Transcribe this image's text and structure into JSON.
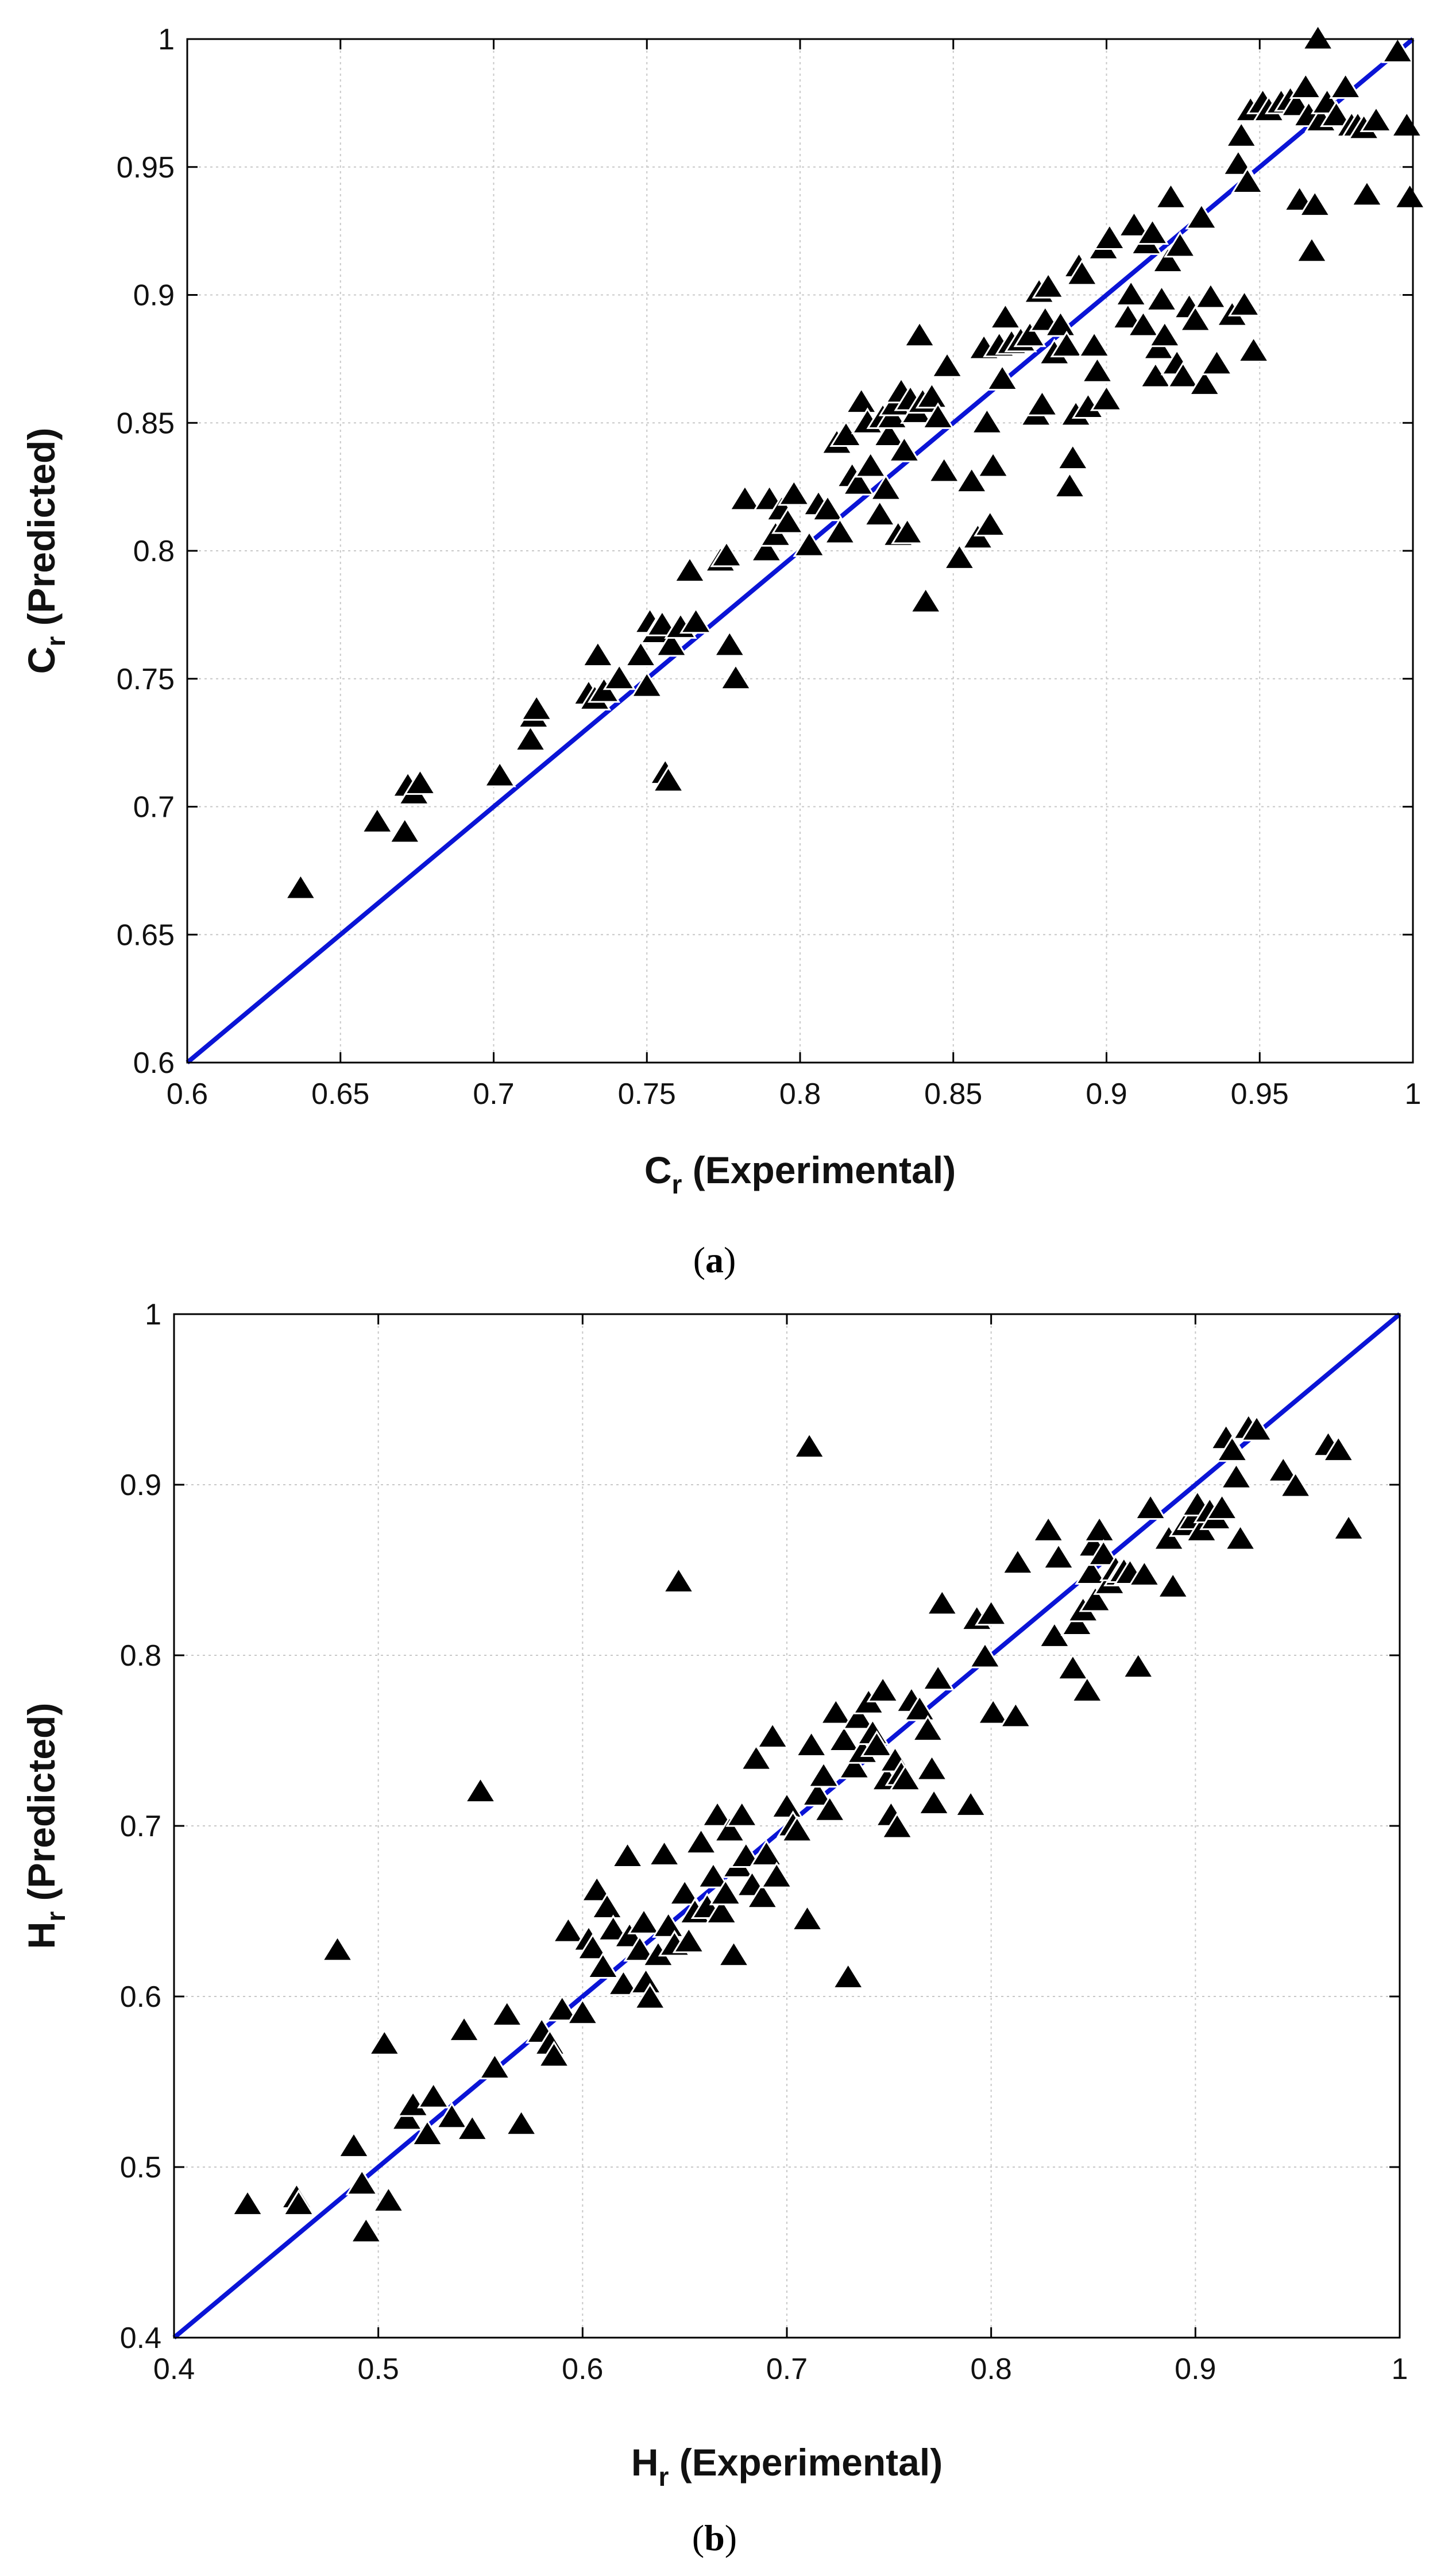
{
  "chart_data": [
    {
      "id": "a",
      "type": "scatter",
      "caption_letter": "a",
      "title": "",
      "xlabel_main": "C",
      "xlabel_sub": "r",
      "xlabel_rest": " (Experimental)",
      "ylabel_main": "C",
      "ylabel_sub": "r",
      "ylabel_rest": " (Predicted)",
      "xlim": [
        0.6,
        1.0
      ],
      "ylim": [
        0.6,
        1.0
      ],
      "xticks": [
        0.6,
        0.65,
        0.7,
        0.75,
        0.8,
        0.85,
        0.9,
        0.95,
        1
      ],
      "yticks": [
        0.6,
        0.65,
        0.7,
        0.75,
        0.8,
        0.85,
        0.9,
        0.95,
        1
      ],
      "xtick_labels": [
        "0.6",
        "0.65",
        "0.7",
        "0.75",
        "0.8",
        "0.85",
        "0.9",
        "0.95",
        "1"
      ],
      "ytick_labels": [
        "0.6",
        "0.65",
        "0.7",
        "0.75",
        "0.8",
        "0.85",
        "0.9",
        "0.95",
        "1"
      ],
      "grid": true,
      "marker": "triangle",
      "marker_color": "#000000",
      "reference_line": {
        "from": [
          0.6,
          0.6
        ],
        "to": [
          1.0,
          1.0
        ],
        "color": "#0a14d6"
      },
      "points": [
        [
          0.637,
          0.668
        ],
        [
          0.662,
          0.694
        ],
        [
          0.671,
          0.69
        ],
        [
          0.672,
          0.708
        ],
        [
          0.674,
          0.705
        ],
        [
          0.676,
          0.709
        ],
        [
          0.702,
          0.712
        ],
        [
          0.712,
          0.726
        ],
        [
          0.713,
          0.735
        ],
        [
          0.714,
          0.738
        ],
        [
          0.731,
          0.744
        ],
        [
          0.733,
          0.742
        ],
        [
          0.734,
          0.759
        ],
        [
          0.736,
          0.745
        ],
        [
          0.741,
          0.75
        ],
        [
          0.748,
          0.759
        ],
        [
          0.75,
          0.747
        ],
        [
          0.751,
          0.772
        ],
        [
          0.753,
          0.768
        ],
        [
          0.755,
          0.771
        ],
        [
          0.756,
          0.713
        ],
        [
          0.757,
          0.71
        ],
        [
          0.758,
          0.763
        ],
        [
          0.761,
          0.77
        ],
        [
          0.764,
          0.792
        ],
        [
          0.766,
          0.772
        ],
        [
          0.774,
          0.796
        ],
        [
          0.776,
          0.798
        ],
        [
          0.777,
          0.763
        ],
        [
          0.779,
          0.75
        ],
        [
          0.782,
          0.82
        ],
        [
          0.789,
          0.8
        ],
        [
          0.79,
          0.82
        ],
        [
          0.792,
          0.806
        ],
        [
          0.794,
          0.816
        ],
        [
          0.796,
          0.811
        ],
        [
          0.798,
          0.822
        ],
        [
          0.803,
          0.802
        ],
        [
          0.806,
          0.818
        ],
        [
          0.809,
          0.816
        ],
        [
          0.812,
          0.842
        ],
        [
          0.813,
          0.807
        ],
        [
          0.815,
          0.845
        ],
        [
          0.817,
          0.829
        ],
        [
          0.819,
          0.826
        ],
        [
          0.82,
          0.858
        ],
        [
          0.822,
          0.85
        ],
        [
          0.823,
          0.833
        ],
        [
          0.826,
          0.814
        ],
        [
          0.827,
          0.852
        ],
        [
          0.828,
          0.824
        ],
        [
          0.829,
          0.845
        ],
        [
          0.83,
          0.852
        ],
        [
          0.831,
          0.857
        ],
        [
          0.832,
          0.806
        ],
        [
          0.833,
          0.862
        ],
        [
          0.834,
          0.839
        ],
        [
          0.835,
          0.807
        ],
        [
          0.836,
          0.859
        ],
        [
          0.838,
          0.854
        ],
        [
          0.839,
          0.884
        ],
        [
          0.84,
          0.858
        ],
        [
          0.841,
          0.78
        ],
        [
          0.843,
          0.86
        ],
        [
          0.845,
          0.852
        ],
        [
          0.847,
          0.831
        ],
        [
          0.848,
          0.872
        ],
        [
          0.852,
          0.797
        ],
        [
          0.856,
          0.827
        ],
        [
          0.858,
          0.805
        ],
        [
          0.86,
          0.879
        ],
        [
          0.861,
          0.85
        ],
        [
          0.862,
          0.81
        ],
        [
          0.863,
          0.833
        ],
        [
          0.865,
          0.88
        ],
        [
          0.866,
          0.867
        ],
        [
          0.867,
          0.891
        ],
        [
          0.869,
          0.881
        ],
        [
          0.872,
          0.882
        ],
        [
          0.875,
          0.884
        ],
        [
          0.877,
          0.853
        ],
        [
          0.878,
          0.901
        ],
        [
          0.879,
          0.857
        ],
        [
          0.88,
          0.89
        ],
        [
          0.881,
          0.903
        ],
        [
          0.883,
          0.877
        ],
        [
          0.885,
          0.888
        ],
        [
          0.887,
          0.88
        ],
        [
          0.888,
          0.825
        ],
        [
          0.889,
          0.836
        ],
        [
          0.89,
          0.853
        ],
        [
          0.891,
          0.911
        ],
        [
          0.892,
          0.908
        ],
        [
          0.894,
          0.856
        ],
        [
          0.896,
          0.88
        ],
        [
          0.897,
          0.87
        ],
        [
          0.899,
          0.918
        ],
        [
          0.9,
          0.859
        ],
        [
          0.901,
          0.922
        ],
        [
          0.907,
          0.891
        ],
        [
          0.908,
          0.9
        ],
        [
          0.909,
          0.927
        ],
        [
          0.912,
          0.888
        ],
        [
          0.913,
          0.92
        ],
        [
          0.915,
          0.924
        ],
        [
          0.916,
          0.868
        ],
        [
          0.917,
          0.879
        ],
        [
          0.918,
          0.898
        ],
        [
          0.919,
          0.884
        ],
        [
          0.92,
          0.913
        ],
        [
          0.921,
          0.938
        ],
        [
          0.923,
          0.873
        ],
        [
          0.924,
          0.919
        ],
        [
          0.925,
          0.868
        ],
        [
          0.927,
          0.895
        ],
        [
          0.929,
          0.89
        ],
        [
          0.931,
          0.93
        ],
        [
          0.932,
          0.865
        ],
        [
          0.934,
          0.899
        ],
        [
          0.936,
          0.873
        ],
        [
          0.941,
          0.892
        ],
        [
          0.943,
          0.951
        ],
        [
          0.944,
          0.962
        ],
        [
          0.945,
          0.896
        ],
        [
          0.946,
          0.944
        ],
        [
          0.947,
          0.972
        ],
        [
          0.948,
          0.878
        ],
        [
          0.951,
          0.975
        ],
        [
          0.953,
          0.972
        ],
        [
          0.957,
          0.975
        ],
        [
          0.96,
          0.976
        ],
        [
          0.962,
          0.974
        ],
        [
          0.963,
          0.937
        ],
        [
          0.965,
          0.981
        ],
        [
          0.966,
          0.97
        ],
        [
          0.967,
          0.917
        ],
        [
          0.968,
          0.935
        ],
        [
          0.969,
          1.0
        ],
        [
          0.97,
          0.968
        ],
        [
          0.972,
          0.975
        ],
        [
          0.975,
          0.97
        ],
        [
          0.978,
          0.981
        ],
        [
          0.98,
          0.966
        ],
        [
          0.982,
          0.966
        ],
        [
          0.984,
          0.965
        ],
        [
          0.985,
          0.939
        ],
        [
          0.988,
          0.968
        ],
        [
          0.995,
          0.995
        ],
        [
          0.998,
          0.966
        ],
        [
          0.999,
          0.938
        ]
      ]
    },
    {
      "id": "b",
      "type": "scatter",
      "caption_letter": "b",
      "title": "",
      "xlabel_main": "H",
      "xlabel_sub": "r",
      "xlabel_rest": " (Experimental)",
      "ylabel_main": "H",
      "ylabel_sub": "r",
      "ylabel_rest": " (Predicted)",
      "xlim": [
        0.4,
        1.0
      ],
      "ylim": [
        0.4,
        1.0
      ],
      "xticks": [
        0.4,
        0.5,
        0.6,
        0.7,
        0.8,
        0.9,
        1
      ],
      "yticks": [
        0.4,
        0.5,
        0.6,
        0.7,
        0.8,
        0.9,
        1
      ],
      "xtick_labels": [
        "0.4",
        "0.5",
        "0.6",
        "0.7",
        "0.8",
        "0.9",
        "1"
      ],
      "ytick_labels": [
        "0.4",
        "0.5",
        "0.6",
        "0.7",
        "0.8",
        "0.9",
        "1"
      ],
      "grid": true,
      "marker": "triangle",
      "marker_color": "#000000",
      "reference_line": {
        "from": [
          0.4,
          0.4
        ],
        "to": [
          1.0,
          1.0
        ],
        "color": "#0a14d6"
      },
      "points": [
        [
          0.436,
          0.478
        ],
        [
          0.46,
          0.482
        ],
        [
          0.461,
          0.478
        ],
        [
          0.48,
          0.627
        ],
        [
          0.488,
          0.512
        ],
        [
          0.492,
          0.49
        ],
        [
          0.494,
          0.462
        ],
        [
          0.503,
          0.572
        ],
        [
          0.505,
          0.48
        ],
        [
          0.514,
          0.528
        ],
        [
          0.517,
          0.536
        ],
        [
          0.524,
          0.519
        ],
        [
          0.527,
          0.541
        ],
        [
          0.536,
          0.529
        ],
        [
          0.542,
          0.58
        ],
        [
          0.546,
          0.522
        ],
        [
          0.55,
          0.72
        ],
        [
          0.557,
          0.558
        ],
        [
          0.563,
          0.589
        ],
        [
          0.57,
          0.525
        ],
        [
          0.58,
          0.579
        ],
        [
          0.584,
          0.572
        ],
        [
          0.586,
          0.565
        ],
        [
          0.59,
          0.592
        ],
        [
          0.593,
          0.638
        ],
        [
          0.6,
          0.59
        ],
        [
          0.603,
          0.633
        ],
        [
          0.605,
          0.628
        ],
        [
          0.607,
          0.662
        ],
        [
          0.61,
          0.617
        ],
        [
          0.612,
          0.652
        ],
        [
          0.615,
          0.639
        ],
        [
          0.62,
          0.607
        ],
        [
          0.622,
          0.682
        ],
        [
          0.623,
          0.635
        ],
        [
          0.628,
          0.627
        ],
        [
          0.63,
          0.643
        ],
        [
          0.631,
          0.608
        ],
        [
          0.633,
          0.599
        ],
        [
          0.637,
          0.624
        ],
        [
          0.64,
          0.683
        ],
        [
          0.642,
          0.641
        ],
        [
          0.645,
          0.63
        ],
        [
          0.647,
          0.843
        ],
        [
          0.65,
          0.66
        ],
        [
          0.652,
          0.632
        ],
        [
          0.655,
          0.649
        ],
        [
          0.658,
          0.69
        ],
        [
          0.661,
          0.652
        ],
        [
          0.664,
          0.67
        ],
        [
          0.666,
          0.706
        ],
        [
          0.668,
          0.649
        ],
        [
          0.67,
          0.66
        ],
        [
          0.672,
          0.697
        ],
        [
          0.674,
          0.624
        ],
        [
          0.676,
          0.676
        ],
        [
          0.678,
          0.706
        ],
        [
          0.68,
          0.682
        ],
        [
          0.683,
          0.665
        ],
        [
          0.685,
          0.739
        ],
        [
          0.688,
          0.658
        ],
        [
          0.69,
          0.683
        ],
        [
          0.693,
          0.752
        ],
        [
          0.695,
          0.67
        ],
        [
          0.7,
          0.711
        ],
        [
          0.703,
          0.7
        ],
        [
          0.705,
          0.697
        ],
        [
          0.71,
          0.645
        ],
        [
          0.711,
          0.922
        ],
        [
          0.712,
          0.747
        ],
        [
          0.715,
          0.718
        ],
        [
          0.718,
          0.729
        ],
        [
          0.721,
          0.709
        ],
        [
          0.724,
          0.766
        ],
        [
          0.728,
          0.75
        ],
        [
          0.73,
          0.611
        ],
        [
          0.733,
          0.734
        ],
        [
          0.735,
          0.763
        ],
        [
          0.737,
          0.743
        ],
        [
          0.74,
          0.772
        ],
        [
          0.742,
          0.754
        ],
        [
          0.744,
          0.747
        ],
        [
          0.747,
          0.779
        ],
        [
          0.749,
          0.727
        ],
        [
          0.751,
          0.706
        ],
        [
          0.753,
          0.738
        ],
        [
          0.754,
          0.699
        ],
        [
          0.756,
          0.73
        ],
        [
          0.758,
          0.727
        ],
        [
          0.761,
          0.773
        ],
        [
          0.765,
          0.768
        ],
        [
          0.769,
          0.756
        ],
        [
          0.771,
          0.733
        ],
        [
          0.772,
          0.713
        ],
        [
          0.774,
          0.786
        ],
        [
          0.776,
          0.83
        ],
        [
          0.79,
          0.712
        ],
        [
          0.793,
          0.821
        ],
        [
          0.797,
          0.799
        ],
        [
          0.8,
          0.824
        ],
        [
          0.801,
          0.766
        ],
        [
          0.812,
          0.764
        ],
        [
          0.813,
          0.854
        ],
        [
          0.828,
          0.873
        ],
        [
          0.831,
          0.811
        ],
        [
          0.833,
          0.857
        ],
        [
          0.84,
          0.792
        ],
        [
          0.842,
          0.818
        ],
        [
          0.845,
          0.826
        ],
        [
          0.847,
          0.779
        ],
        [
          0.849,
          0.848
        ],
        [
          0.85,
          0.864
        ],
        [
          0.851,
          0.832
        ],
        [
          0.853,
          0.873
        ],
        [
          0.855,
          0.859
        ],
        [
          0.858,
          0.842
        ],
        [
          0.861,
          0.85
        ],
        [
          0.863,
          0.847
        ],
        [
          0.865,
          0.849
        ],
        [
          0.868,
          0.848
        ],
        [
          0.872,
          0.793
        ],
        [
          0.875,
          0.847
        ],
        [
          0.878,
          0.886
        ],
        [
          0.887,
          0.868
        ],
        [
          0.889,
          0.84
        ],
        [
          0.895,
          0.876
        ],
        [
          0.899,
          0.88
        ],
        [
          0.901,
          0.888
        ],
        [
          0.903,
          0.873
        ],
        [
          0.907,
          0.884
        ],
        [
          0.91,
          0.88
        ],
        [
          0.913,
          0.886
        ],
        [
          0.915,
          0.927
        ],
        [
          0.918,
          0.92
        ],
        [
          0.92,
          0.904
        ],
        [
          0.922,
          0.868
        ],
        [
          0.926,
          0.933
        ],
        [
          0.93,
          0.932
        ],
        [
          0.943,
          0.908
        ],
        [
          0.949,
          0.899
        ],
        [
          0.965,
          0.923
        ],
        [
          0.97,
          0.92
        ],
        [
          0.975,
          0.874
        ]
      ]
    }
  ]
}
